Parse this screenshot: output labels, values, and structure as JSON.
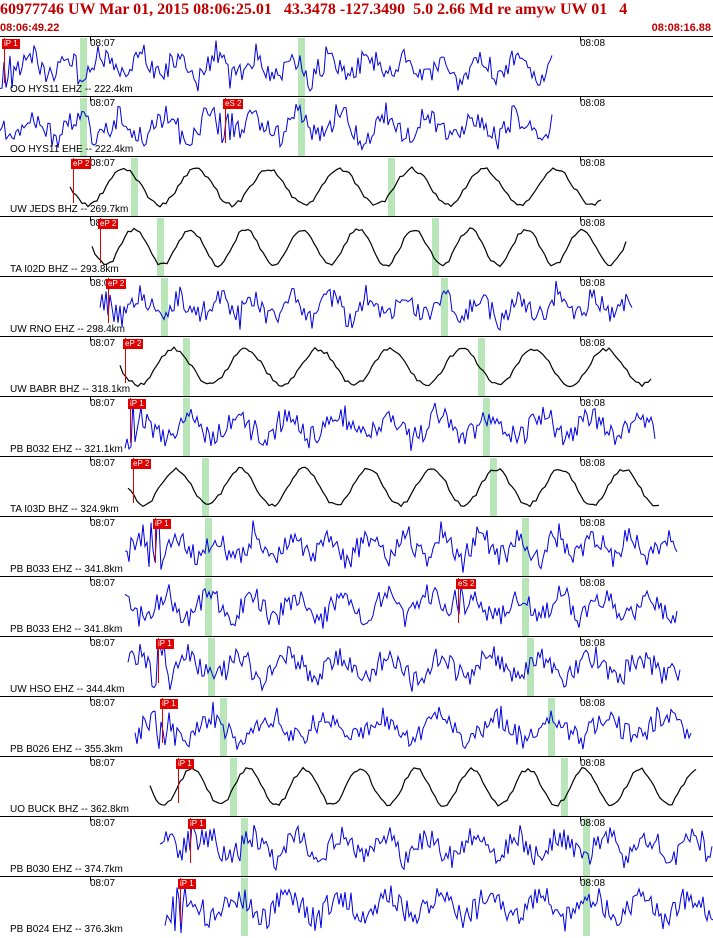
{
  "header": {
    "title": "60977746 UW Mar 01, 2015 08:06:25.01   43.3478 -127.3490  5.0 2.66 Md re amyw UW 01   4",
    "start_time": "08:06:49.22",
    "end_time": "08:08:16.88"
  },
  "time_marks": {
    "first": "08:07",
    "second": "08:08"
  },
  "colors": {
    "header": "#c00000",
    "blue_trace": "#0000e0",
    "black_trace": "#000000",
    "pick": "#e00000",
    "window": "#b8e6b8"
  },
  "traces": [
    {
      "label": "OO HYS11 EHZ -- 222.4km",
      "color": "blue",
      "pick": "iP 1"
    },
    {
      "label": "OO HYS11 EHE -- 222.4km",
      "color": "blue",
      "pick": "eS 2"
    },
    {
      "label": "UW JEDS BHZ -- 269.7km",
      "color": "black",
      "pick": "eP 2"
    },
    {
      "label": "TA I02D BHZ -- 293.8km",
      "color": "black",
      "pick": "eP 2"
    },
    {
      "label": "UW RNO EHZ -- 298.4km",
      "color": "blue",
      "pick": "eP 2"
    },
    {
      "label": "UW BABR BHZ -- 318.1km",
      "color": "black",
      "pick": "eP 2"
    },
    {
      "label": "PB B032 EHZ -- 321.1km",
      "color": "blue",
      "pick": "iP 1"
    },
    {
      "label": "TA I03D BHZ -- 324.9km",
      "color": "black",
      "pick": "eP 2"
    },
    {
      "label": "PB B033 EHZ -- 341.8km",
      "color": "blue",
      "pick": "iP 1"
    },
    {
      "label": "PB B033 EH2 -- 341.8km",
      "color": "blue",
      "pick": "eS 2"
    },
    {
      "label": "UW HSO EHZ -- 344.4km",
      "color": "blue",
      "pick": "iP 1"
    },
    {
      "label": "PB B026 EHZ -- 355.3km",
      "color": "blue",
      "pick": "iP 1"
    },
    {
      "label": "UO BUCK BHZ -- 362.8km",
      "color": "black",
      "pick": "iP 1"
    },
    {
      "label": "PB B030 EHZ -- 374.7km",
      "color": "blue",
      "pick": "iP 1"
    },
    {
      "label": "PB B024 EHZ -- 376.3km",
      "color": "blue",
      "pick": "iP 1"
    }
  ]
}
